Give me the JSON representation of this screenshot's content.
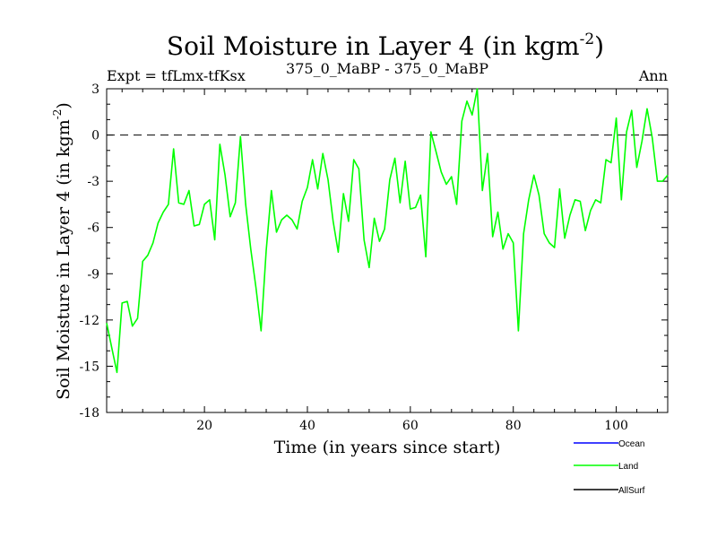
{
  "chart_data": {
    "type": "line",
    "title": "Soil Moisture in Layer 4 (in kgm",
    "title_exponent": "-2",
    "title_close": ")",
    "left_label": "Expt = tfLmx-tfKsx",
    "center_label": "375_0_MaBP - 375_0_MaBP",
    "right_label": "Ann",
    "xlabel": "Time (in years since start)",
    "ylabel": "Soil Moisture in Layer 4 (in kgm",
    "ylabel_exponent": "-2",
    "ylabel_close": ")",
    "xlim": [
      1,
      110
    ],
    "ylim": [
      -18,
      3
    ],
    "x_ticks": [
      20,
      40,
      60,
      80,
      100
    ],
    "x_tick_labels": [
      "20",
      "40",
      "60",
      "80",
      "100"
    ],
    "y_ticks": [
      3,
      0,
      -3,
      -6,
      -9,
      -12,
      -15,
      -18
    ],
    "y_tick_labels": [
      "3",
      "0",
      "-3",
      "-6",
      "-9",
      "-12",
      "-15",
      "-18"
    ],
    "reference_line": 0,
    "legend": [
      {
        "name": "Ocean",
        "color": "#0000ff"
      },
      {
        "name": "Land",
        "color": "#00ff00"
      },
      {
        "name": "AllSurf",
        "color": "#000000"
      }
    ],
    "series": [
      {
        "name": "Land",
        "color": "#00ff00",
        "x": [
          1,
          2,
          3,
          4,
          5,
          6,
          7,
          8,
          9,
          10,
          11,
          12,
          13,
          14,
          15,
          16,
          17,
          18,
          19,
          20,
          21,
          22,
          23,
          24,
          25,
          26,
          27,
          28,
          29,
          30,
          31,
          32,
          33,
          34,
          35,
          36,
          37,
          38,
          39,
          40,
          41,
          42,
          43,
          44,
          45,
          46,
          47,
          48,
          49,
          50,
          51,
          52,
          53,
          54,
          55,
          56,
          57,
          58,
          59,
          60,
          61,
          62,
          63,
          64,
          65,
          66,
          67,
          68,
          69,
          70,
          71,
          72,
          73,
          74,
          75,
          76,
          77,
          78,
          79,
          80,
          81,
          82,
          83,
          84,
          85,
          86,
          87,
          88,
          89,
          90,
          91,
          92,
          93,
          94,
          95,
          96,
          97,
          98,
          99,
          100,
          101,
          102,
          103,
          104,
          105,
          106,
          107,
          108,
          109,
          110
        ],
        "values": [
          -12.2,
          -13.8,
          -15.4,
          -10.9,
          -10.8,
          -12.4,
          -11.9,
          -8.2,
          -7.8,
          -7.0,
          -5.7,
          -5.0,
          -4.5,
          -0.9,
          -4.4,
          -4.5,
          -3.6,
          -5.9,
          -5.8,
          -4.5,
          -4.2,
          -6.8,
          -0.6,
          -2.6,
          -5.3,
          -4.4,
          -0.1,
          -4.5,
          -7.4,
          -9.9,
          -12.7,
          -7.5,
          -3.6,
          -6.3,
          -5.5,
          -5.2,
          -5.5,
          -6.1,
          -4.3,
          -3.4,
          -1.6,
          -3.5,
          -1.2,
          -2.9,
          -5.6,
          -7.6,
          -3.8,
          -5.6,
          -1.6,
          -2.2,
          -6.8,
          -8.6,
          -5.4,
          -6.9,
          -6.1,
          -2.9,
          -1.5,
          -4.4,
          -1.7,
          -4.8,
          -4.7,
          -3.9,
          -7.9,
          0.2,
          -1.1,
          -2.4,
          -3.2,
          -2.7,
          -4.5,
          0.9,
          2.2,
          1.3,
          3.0,
          -3.6,
          -1.2,
          -6.6,
          -5.0,
          -7.4,
          -6.4,
          -7.0,
          -12.7,
          -6.4,
          -4.2,
          -2.6,
          -3.9,
          -6.4,
          -7.0,
          -7.3,
          -3.5,
          -6.7,
          -5.2,
          -4.2,
          -4.3,
          -6.2,
          -4.9,
          -4.2,
          -4.4,
          -1.6,
          -1.8,
          1.1,
          -4.2,
          0.2,
          1.6,
          -2.1,
          -0.4,
          1.7,
          -0.2,
          -3.0,
          -3.0,
          -2.6
        ]
      }
    ]
  }
}
